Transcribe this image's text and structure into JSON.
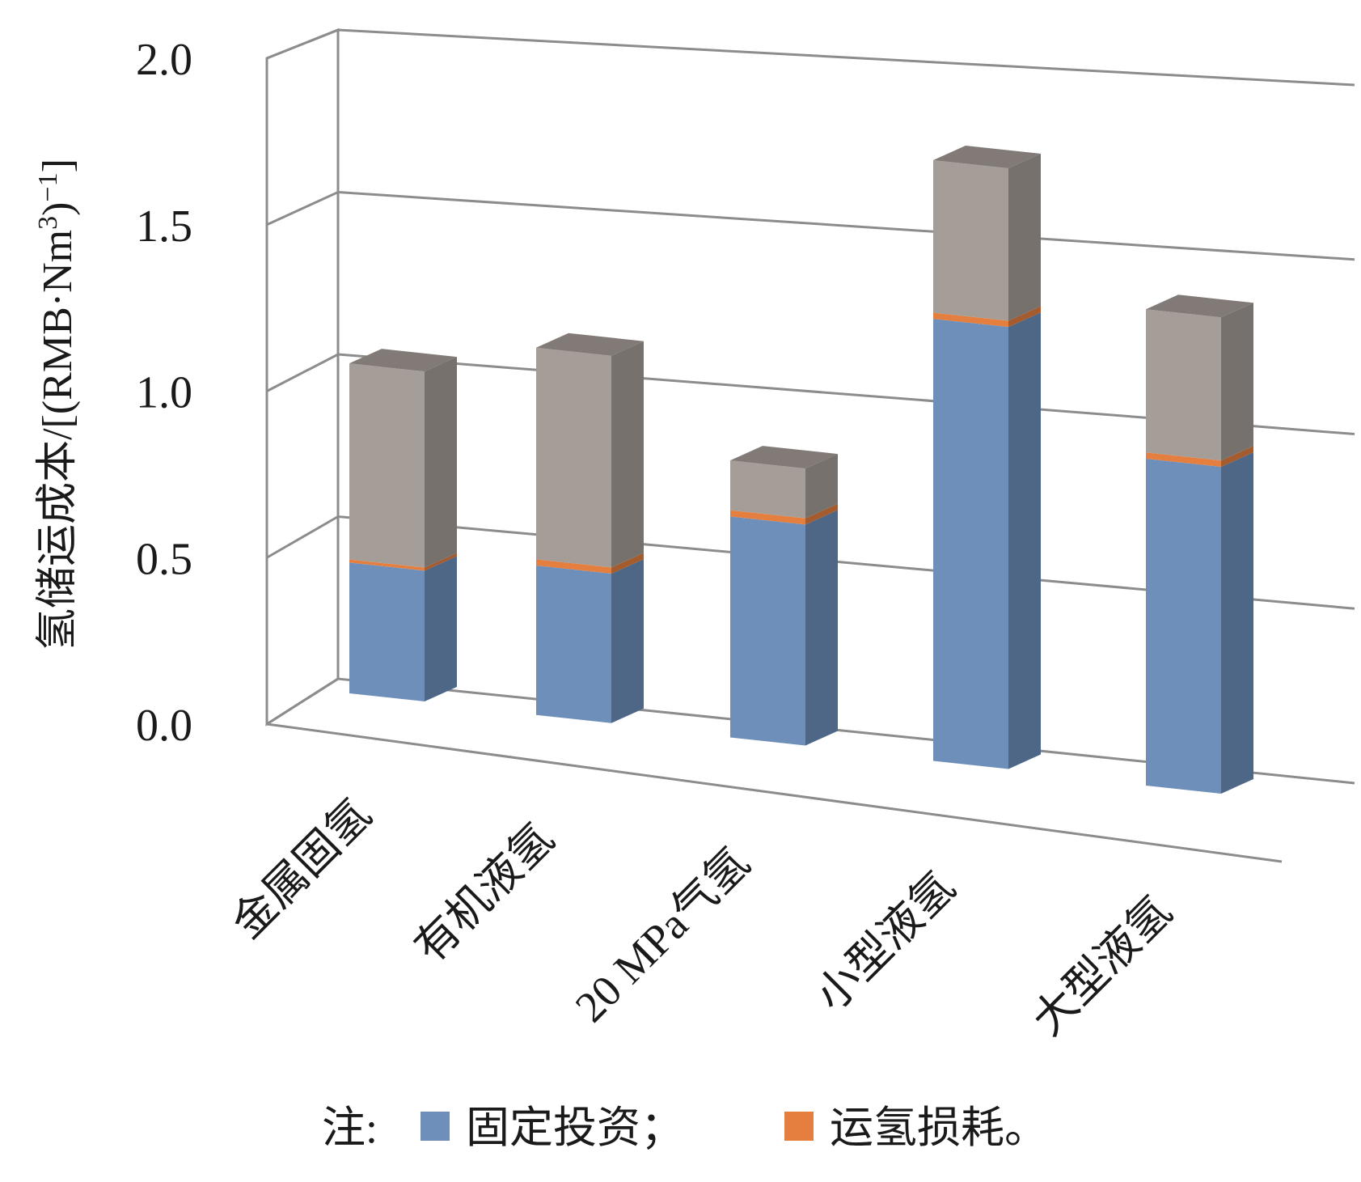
{
  "chart_data": {
    "type": "bar",
    "stacked": true,
    "three_d": true,
    "ylabel": "氢储运成本/[(RMB·Nm³)⁻¹]",
    "ylabel_parts": {
      "prefix": "氢储运成本/[(RMB·Nm",
      "sup1": "3",
      "mid": ")",
      "sup2": "−1",
      "suffix": "]"
    },
    "ylim": [
      0,
      2.0
    ],
    "yticks": [
      "0.0",
      "0.5",
      "1.0",
      "1.5",
      "2.0"
    ],
    "ytick_values": [
      0,
      0.5,
      1.0,
      1.5,
      2.0
    ],
    "grid": true,
    "categories": [
      "金属固氢",
      "有机液氢",
      "20 MPa气氢",
      "小型液氢",
      "大型液氢"
    ],
    "series": [
      {
        "name": "固定投资",
        "values": [
          0.42,
          0.48,
          0.71,
          1.42,
          1.05
        ],
        "color": "#6e8fba"
      },
      {
        "name": "运氢损耗",
        "values": [
          0.01,
          0.02,
          0.02,
          0.02,
          0.02
        ],
        "color": "#e47f3f"
      },
      {
        "values": [
          0.63,
          0.68,
          0.16,
          0.49,
          0.46
        ],
        "color": "#a59d98"
      }
    ],
    "legend": {
      "position": "bottom",
      "prefix": "注:",
      "items": [
        {
          "label": "固定投资；",
          "color": "#6e8fba"
        },
        {
          "label": "运氢损耗。",
          "color": "#e47f3f"
        }
      ]
    }
  }
}
